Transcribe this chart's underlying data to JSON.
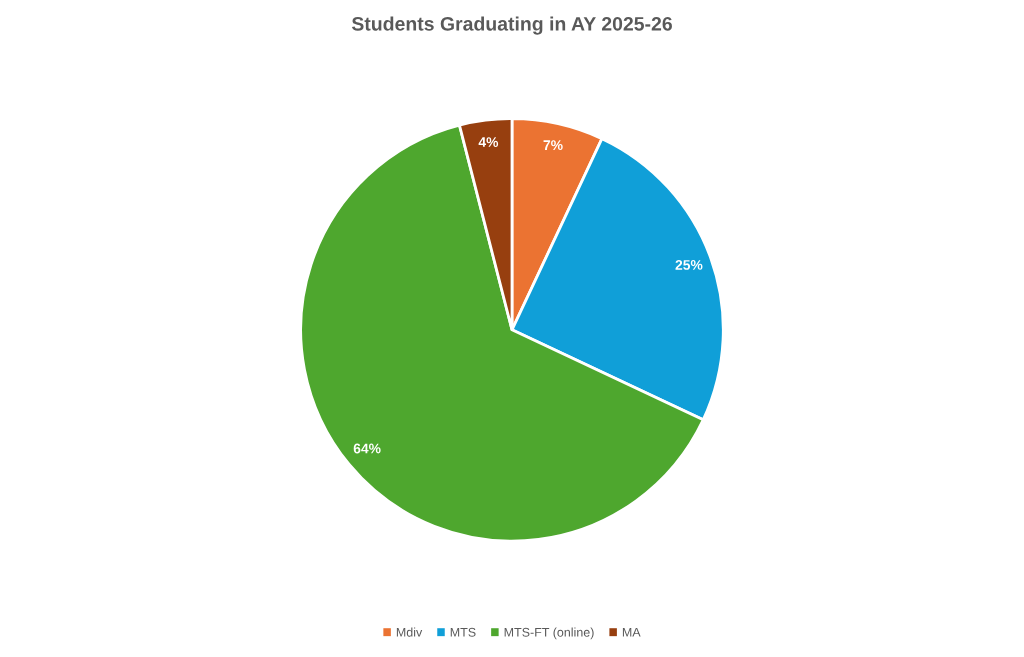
{
  "chart_data": {
    "type": "pie",
    "title": "Students Graduating in AY 2025-26",
    "categories": [
      "Mdiv",
      "MTS",
      "MTS-FT (online)",
      "MA"
    ],
    "values": [
      7,
      25,
      64,
      4
    ],
    "colors": [
      "#eb7332",
      "#109fd8",
      "#4ea72e",
      "#973f0f"
    ],
    "value_labels": [
      "7%",
      "25%",
      "64%",
      "4%"
    ],
    "legend": "bottom"
  }
}
